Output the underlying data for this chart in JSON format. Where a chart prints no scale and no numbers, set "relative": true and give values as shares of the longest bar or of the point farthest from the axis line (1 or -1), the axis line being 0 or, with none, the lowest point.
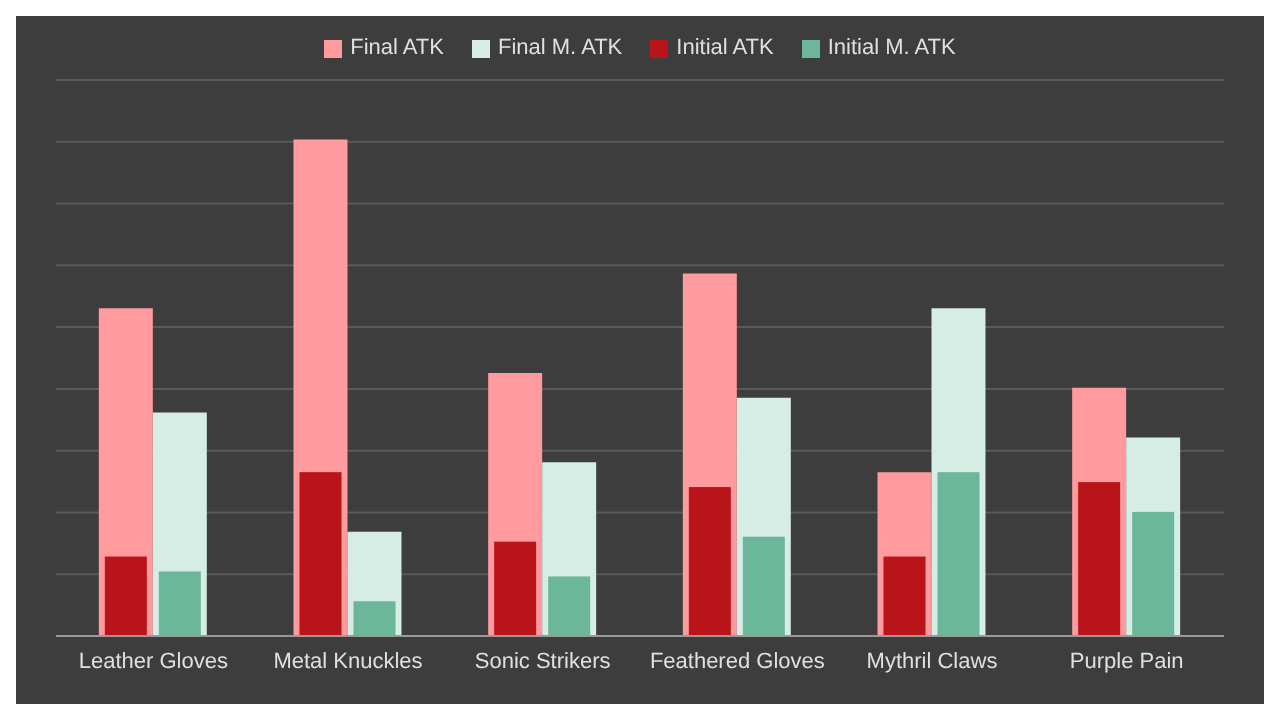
{
  "chart_data": {
    "type": "bar",
    "relative": true,
    "grid": "y",
    "legend": "top",
    "categories": [
      "Leather Gloves",
      "Metal Knuckles",
      "Sonic Strikers",
      "Feathered Gloves",
      "Mythril Claws",
      "Purple Pain"
    ],
    "series": [
      {
        "name": "Final ATK",
        "color": "#ff9a9e",
        "values": [
          0.66,
          1.0,
          0.53,
          0.73,
          0.33,
          0.5
        ]
      },
      {
        "name": "Final M. ATK",
        "color": "#d5ede4",
        "values": [
          0.45,
          0.21,
          0.35,
          0.48,
          0.66,
          0.4
        ]
      },
      {
        "name": "Initial ATK",
        "color": "#b81419",
        "values": [
          0.16,
          0.33,
          0.19,
          0.3,
          0.16,
          0.31
        ]
      },
      {
        "name": "Initial M. ATK",
        "color": "#6cb69a",
        "values": [
          0.13,
          0.07,
          0.12,
          0.2,
          0.33,
          0.25
        ]
      }
    ]
  }
}
